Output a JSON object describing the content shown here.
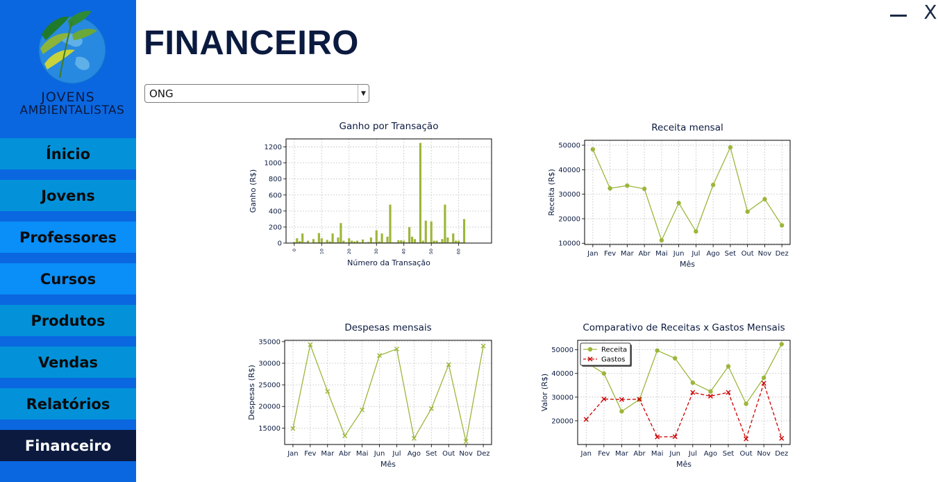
{
  "app": {
    "title": "FINANCEIRO",
    "brand_line1": "Jovens",
    "brand_line2": "Ambientalistas"
  },
  "window": {
    "minimize_icon": "minimize-icon",
    "close_label": "X"
  },
  "sidebar": {
    "items": [
      {
        "label": "Ínicio",
        "color": "#0392d9"
      },
      {
        "label": "Jovens",
        "color": "#0392d9"
      },
      {
        "label": "Professores",
        "color": "#0a8ef7"
      },
      {
        "label": "Cursos",
        "color": "#0a8ef7"
      },
      {
        "label": "Produtos",
        "color": "#0392d9"
      },
      {
        "label": "Vendas",
        "color": "#0392d9"
      },
      {
        "label": "Relatórios",
        "color": "#0392d9"
      },
      {
        "label": "Financeiro",
        "color": "#0c1a3f",
        "active": true
      }
    ]
  },
  "filter": {
    "selected": "ONG"
  },
  "colors": {
    "series": "#9cb63a",
    "gastos": "#cc0000",
    "title": "#0b1a3f"
  },
  "chart_data": [
    {
      "type": "bar",
      "title": "Ganho por Transação",
      "xlabel": "Número da Transação",
      "ylabel": "Ganho (R$)",
      "ylim": [
        0,
        1300
      ],
      "xlim": [
        -3,
        72
      ],
      "yticks": [
        0,
        200,
        400,
        600,
        800,
        1000,
        1200
      ],
      "xticks": [
        0,
        10,
        20,
        30,
        40,
        50,
        60
      ],
      "grid": true,
      "values": [
        15,
        60,
        25,
        120,
        10,
        30,
        5,
        50,
        10,
        125,
        60,
        10,
        40,
        20,
        120,
        10,
        70,
        250,
        30,
        10,
        60,
        30,
        20,
        30,
        10,
        45,
        10,
        15,
        70,
        10,
        160,
        20,
        120,
        10,
        80,
        480,
        10,
        10,
        35,
        35,
        30,
        10,
        200,
        80,
        50,
        10,
        1250,
        30,
        280,
        10,
        270,
        30,
        30,
        10,
        50,
        480,
        70,
        10,
        120,
        30,
        30,
        10,
        300
      ]
    },
    {
      "type": "line",
      "title": "Receita mensal",
      "xlabel": "Mês",
      "ylabel": "Receita (R$)",
      "categories": [
        "Jan",
        "Fev",
        "Mar",
        "Abr",
        "Mai",
        "Jun",
        "Jul",
        "Ago",
        "Set",
        "Out",
        "Nov",
        "Dez"
      ],
      "values": [
        48300,
        32400,
        33500,
        32200,
        11200,
        26400,
        14800,
        33800,
        49100,
        22900,
        28000,
        17300
      ],
      "ylim": [
        9500,
        52000
      ],
      "yticks": [
        10000,
        20000,
        30000,
        40000,
        50000
      ],
      "marker": "circle",
      "grid": true
    },
    {
      "type": "line",
      "title": "Despesas mensais",
      "xlabel": "Mês",
      "ylabel": "Despesas (R$)",
      "categories": [
        "Jan",
        "Fev",
        "Mar",
        "Abr",
        "Mai",
        "Jun",
        "Jul",
        "Ago",
        "Set",
        "Out",
        "Nov",
        "Dez"
      ],
      "values": [
        14900,
        34300,
        23500,
        13200,
        19200,
        31800,
        33300,
        12600,
        19500,
        29700,
        11900,
        34000
      ],
      "ylim": [
        11200,
        35300
      ],
      "yticks": [
        15000,
        20000,
        25000,
        30000,
        35000
      ],
      "marker": "x",
      "grid": true
    },
    {
      "type": "line",
      "title": "Comparativo de Receitas x Gastos Mensais",
      "xlabel": "Mês",
      "ylabel": "Valor (R$)",
      "categories": [
        "Jan",
        "Fev",
        "Mar",
        "Abr",
        "Mai",
        "Jun",
        "Jul",
        "Ago",
        "Set",
        "Out",
        "Nov",
        "Dez"
      ],
      "series": [
        {
          "name": "Receita",
          "values": [
            44700,
            40000,
            24000,
            29000,
            49700,
            46400,
            36100,
            32400,
            43000,
            27200,
            38200,
            52400
          ],
          "marker": "circle",
          "style": "solid"
        },
        {
          "name": "Gastos",
          "values": [
            20600,
            29200,
            29000,
            29100,
            13200,
            13300,
            32000,
            30400,
            32000,
            12400,
            35900,
            12600
          ],
          "marker": "x",
          "style": "dashed"
        }
      ],
      "ylim": [
        10000,
        54000
      ],
      "yticks": [
        20000,
        30000,
        40000,
        50000
      ],
      "legend": "top-left",
      "grid": true
    }
  ]
}
